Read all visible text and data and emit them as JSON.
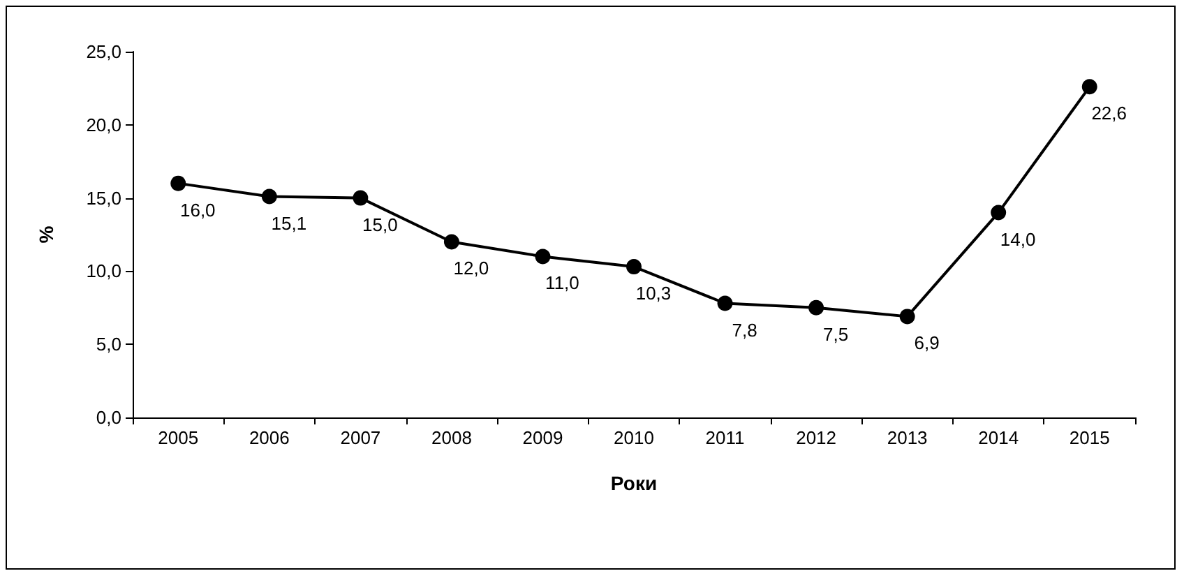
{
  "chart_data": {
    "type": "line",
    "xlabel": "Роки",
    "ylabel": "%",
    "categories": [
      "2005",
      "2006",
      "2007",
      "2008",
      "2009",
      "2010",
      "2011",
      "2012",
      "2013",
      "2014",
      "2015"
    ],
    "series": [
      {
        "color": "#000000",
        "values": [
          16.0,
          15.1,
          15.0,
          12.0,
          11.0,
          10.3,
          7.8,
          7.5,
          6.9,
          14.0,
          22.6
        ],
        "value_labels": [
          "16,0",
          "15,1",
          "15,0",
          "12,0",
          "11,0",
          "10,3",
          "7,8",
          "7,5",
          "6,9",
          "14,0",
          "22,6"
        ]
      }
    ],
    "ylim": [
      0,
      25
    ],
    "yticks": [
      {
        "value": 0,
        "label": "0,0"
      },
      {
        "value": 5,
        "label": "5,0"
      },
      {
        "value": 10,
        "label": "10,0"
      },
      {
        "value": 15,
        "label": "15,0"
      },
      {
        "value": 20,
        "label": "20,0"
      },
      {
        "value": 25,
        "label": "25,0"
      }
    ],
    "grid": false,
    "marker": "circle",
    "line_style": "solid"
  }
}
